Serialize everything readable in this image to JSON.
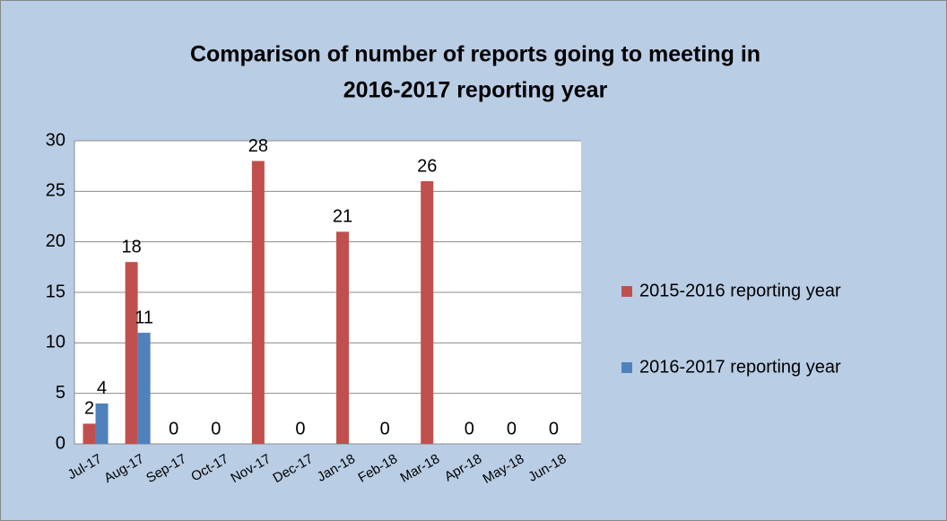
{
  "chart_data": {
    "type": "bar",
    "title": [
      "Comparison of number of reports going to meeting in",
      "2016-2017 reporting year"
    ],
    "categories": [
      "Jul-17",
      "Aug-17",
      "Sep-17",
      "Oct-17",
      "Nov-17",
      "Dec-17",
      "Jan-18",
      "Feb-18",
      "Mar-18",
      "Apr-18",
      "May-18",
      "Jun-18"
    ],
    "series": [
      {
        "name": "2015-2016 reporting year",
        "color": "#c0504d",
        "values": [
          2,
          18,
          0,
          0,
          28,
          0,
          21,
          0,
          26,
          0,
          0,
          0
        ]
      },
      {
        "name": "2016-2017 reporting year",
        "color": "#4f81bd",
        "values": [
          4,
          11,
          null,
          null,
          null,
          null,
          null,
          null,
          null,
          null,
          null,
          null
        ]
      }
    ],
    "ylim": [
      0,
      30
    ],
    "yticks": [
      0,
      5,
      10,
      15,
      20,
      25,
      30
    ],
    "grid": true,
    "legend": "right"
  }
}
